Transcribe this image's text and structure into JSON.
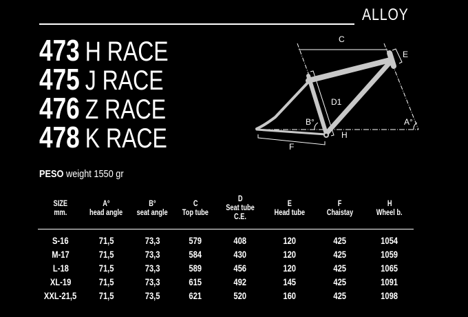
{
  "header": {
    "material": "ALLOY"
  },
  "models": [
    {
      "number": "473",
      "name": "H RACE"
    },
    {
      "number": "475",
      "name": "J RACE"
    },
    {
      "number": "476",
      "name": "Z RACE"
    },
    {
      "number": "478",
      "name": "K RACE"
    }
  ],
  "weight": {
    "label_bold": "PESO",
    "label": "weight 1550 gr"
  },
  "diagram": {
    "labels": {
      "c": "C",
      "e": "E",
      "d1": "D1",
      "b": "B°",
      "a": "A°",
      "h": "H",
      "f": "F"
    },
    "frame_color": "#c8c8c8"
  },
  "table": {
    "headers": [
      [
        "SIZE",
        "mm."
      ],
      [
        "A°",
        "head angle"
      ],
      [
        "B°",
        "seat angle"
      ],
      [
        "C",
        "Top tube"
      ],
      [
        "D",
        "Seat tube C.E."
      ],
      [
        "E",
        "Head tube"
      ],
      [
        "F",
        "Chaistay"
      ],
      [
        "H",
        "Wheel b."
      ]
    ],
    "rows": [
      [
        "S-16",
        "71,5",
        "73,3",
        "579",
        "408",
        "120",
        "425",
        "1054"
      ],
      [
        "M-17",
        "71,5",
        "73,3",
        "584",
        "430",
        "120",
        "425",
        "1059"
      ],
      [
        "L-18",
        "71,5",
        "73,3",
        "589",
        "456",
        "120",
        "425",
        "1065"
      ],
      [
        "XL-19",
        "71,5",
        "73,3",
        "615",
        "492",
        "145",
        "425",
        "1091"
      ],
      [
        "XXL-21,5",
        "71,5",
        "73,5",
        "621",
        "520",
        "160",
        "425",
        "1098"
      ]
    ]
  }
}
